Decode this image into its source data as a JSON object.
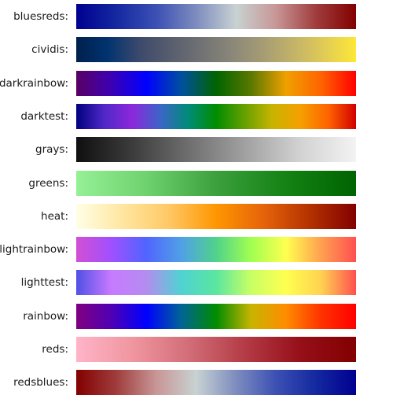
{
  "colormaps": [
    {
      "name": "bluesreds:",
      "stops": [
        "#000090",
        "#1428a0",
        "#3c50b4",
        "#7d8cbe",
        "#c8d2d2",
        "#c89696",
        "#a03c3c",
        "#820000"
      ]
    },
    {
      "name": "cividis:",
      "stops": [
        "#00204c",
        "#00336f",
        "#3b496c",
        "#575d6d",
        "#707173",
        "#8a8779",
        "#a59c74",
        "#c3b369",
        "#e1cc55",
        "#fde737"
      ]
    },
    {
      "name": "darkrainbow:",
      "stops": [
        "#5a0064",
        "#3c00b4",
        "#0000ff",
        "#0050a0",
        "#006400",
        "#5a7800",
        "#f0a000",
        "#ff6400",
        "#ff0000"
      ]
    },
    {
      "name": "darktest:",
      "stops": [
        "#000080",
        "#5028c8",
        "#8c28dc",
        "#3c64c8",
        "#008c78",
        "#008c00",
        "#64a000",
        "#c8b400",
        "#f5a000",
        "#ff6400",
        "#d20000"
      ]
    },
    {
      "name": "grays:",
      "stops": [
        "#0f0f0f",
        "#3c3c3c",
        "#6e6e6e",
        "#a0a0a0",
        "#d2d2d2",
        "#f3f3f3"
      ]
    },
    {
      "name": "greens:",
      "stops": [
        "#96f096",
        "#6ed26e",
        "#3ca03c",
        "#148214",
        "#006400"
      ]
    },
    {
      "name": "heat:",
      "stops": [
        "#ffffe6",
        "#ffe6a0",
        "#ffc864",
        "#ff9600",
        "#e6640a",
        "#b43200",
        "#820000"
      ]
    },
    {
      "name": "lightrainbow:",
      "stops": [
        "#d250d2",
        "#a050ff",
        "#5064ff",
        "#50a0e6",
        "#50d28c",
        "#a0ff50",
        "#ffff50",
        "#ffa050",
        "#ff5050"
      ]
    },
    {
      "name": "lighttest:",
      "stops": [
        "#5050e6",
        "#c87aff",
        "#b48cf0",
        "#50d2d2",
        "#5ae6a0",
        "#c8ff64",
        "#ffff50",
        "#ffd250",
        "#ff5050"
      ]
    },
    {
      "name": "rainbow:",
      "stops": [
        "#800080",
        "#5000b4",
        "#0000ff",
        "#006496",
        "#008c00",
        "#c8b400",
        "#ff8c00",
        "#ff3200",
        "#ff0000"
      ]
    },
    {
      "name": "reds:",
      "stops": [
        "#ffb4c8",
        "#f096a0",
        "#d26e78",
        "#b43c46",
        "#960f19",
        "#820000"
      ]
    },
    {
      "name": "redsblues:",
      "stops": [
        "#820000",
        "#a03c3c",
        "#c89696",
        "#c8d2d2",
        "#7d8cbe",
        "#3c50b4",
        "#1428a0",
        "#000090"
      ]
    }
  ]
}
